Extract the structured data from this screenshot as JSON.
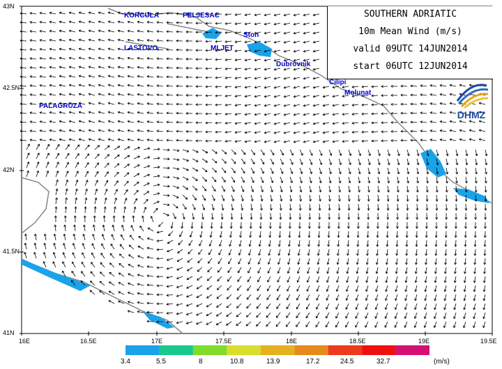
{
  "title_box": {
    "line1": "SOUTHERN ADRIATIC",
    "line2": "10m  Mean  Wind  (m/s)",
    "line3": "valid  09UTC  14JUN2014",
    "line4": "start  06UTC  12JUN2014"
  },
  "logo": {
    "text": "DHMZ",
    "icon": "dhmz-swirl-logo-icon"
  },
  "colors": {
    "sea": "#ffffff",
    "land": "#ffffff",
    "coast": "#888888",
    "arrows": "#000000",
    "place_labels": "#0000cc",
    "strong_wind_coast": "#1aa3e8"
  },
  "places": [
    "KORCULA",
    "PELJESAC",
    "Ston",
    "LASTOVO",
    "MLJET",
    "Dubrovnik",
    "Cilipi",
    "Molunat",
    "PALAGRUZA"
  ],
  "lat_labels": [
    "43N",
    "42.5N",
    "42N",
    "41.5N",
    "41N"
  ],
  "lon_labels": [
    "16E",
    "16.5E",
    "17E",
    "17.5E",
    "18E",
    "18.5E",
    "19E",
    "19.5E"
  ],
  "legend": {
    "unit": "(m/s)",
    "labels": [
      "3.4",
      "5.5",
      "8",
      "10.8",
      "13.9",
      "17.2",
      "24.5",
      "32.7"
    ],
    "colors": [
      "#1aa3e8",
      "#17c98a",
      "#7fdc2a",
      "#d9de2b",
      "#e6b11e",
      "#e68a1e",
      "#ee3a1c",
      "#ee1010",
      "#d41173"
    ]
  }
}
